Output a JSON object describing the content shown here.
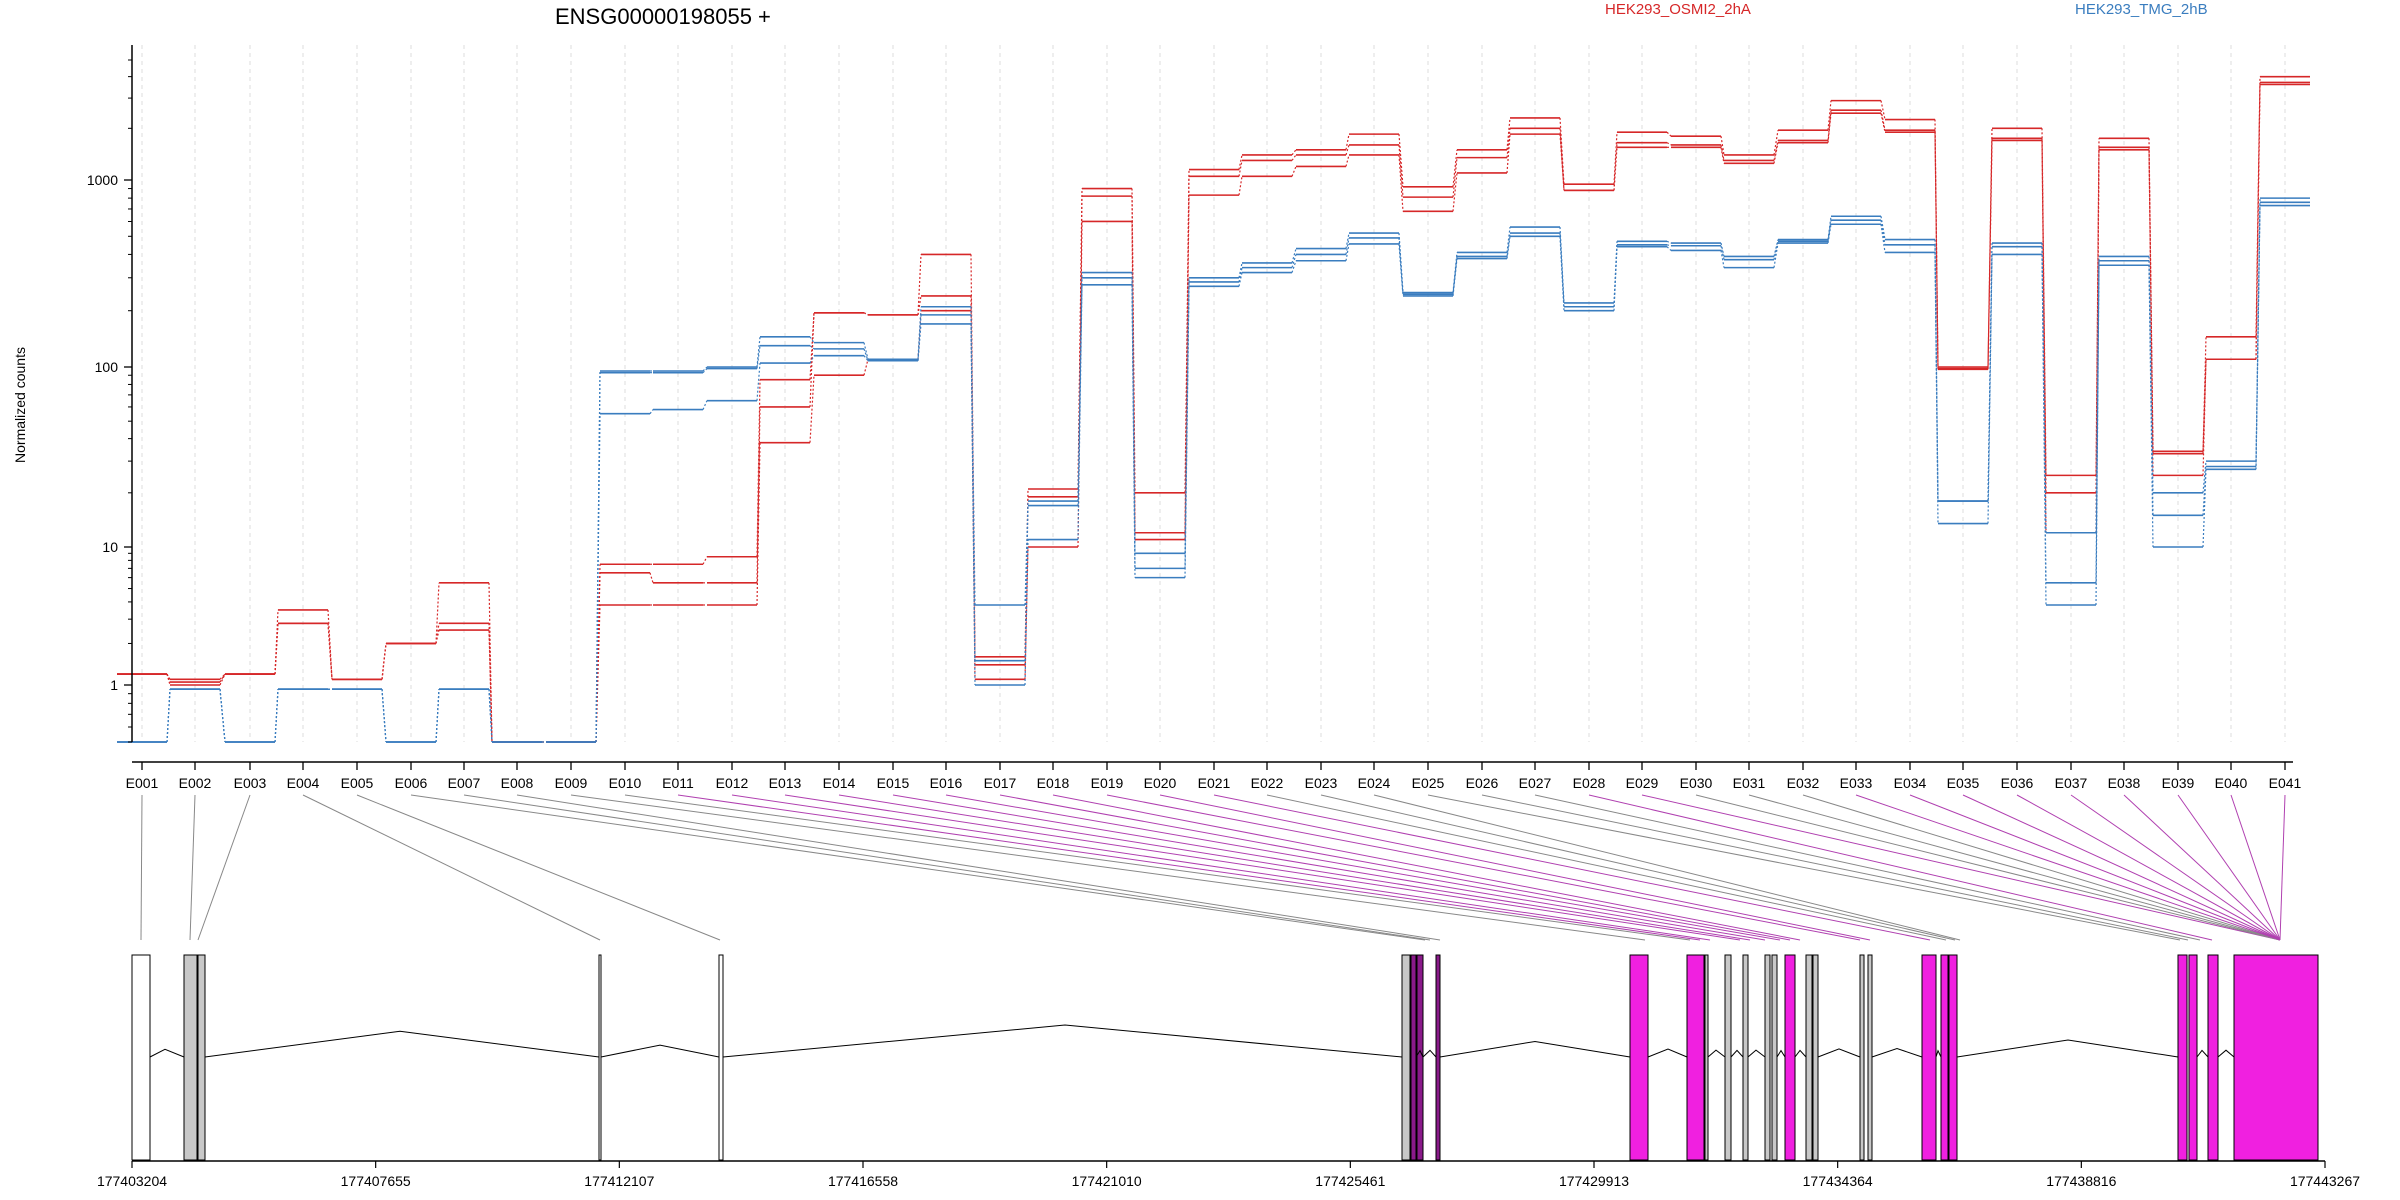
{
  "chart_data": {
    "type": "line",
    "title": "ENSG00000198055 +",
    "xlabel": "",
    "ylabel": "Normalized counts",
    "yscale": "log",
    "ylim": [
      0.5,
      5000
    ],
    "yticks": [
      "1",
      "10",
      "100",
      "1000"
    ],
    "legend": {
      "placement": "top",
      "entries": [
        "HEK293_OSMI2_2hA",
        "HEK293_TMG_2hB"
      ]
    },
    "colors": {
      "HEK293_OSMI2_2hA": "#d62728",
      "HEK293_TMG_2hB": "#3a7dbf"
    },
    "grid": "vertical-dashed",
    "categories": [
      "E001",
      "E002",
      "E003",
      "E004",
      "E005",
      "E006",
      "E007",
      "E008",
      "E009",
      "E010",
      "E011",
      "E012",
      "E013",
      "E014",
      "E015",
      "E016",
      "E017",
      "E018",
      "E019",
      "E020",
      "E021",
      "E022",
      "E023",
      "E024",
      "E025",
      "E026",
      "E027",
      "E028",
      "E029",
      "E030",
      "E031",
      "E032",
      "E033",
      "E034",
      "E035",
      "E036",
      "E037",
      "E038",
      "E039",
      "E040",
      "E041"
    ],
    "series": [
      {
        "group": "HEK293_OSMI2_2hA",
        "values": [
          1.2,
          1.1,
          1.2,
          3.5,
          1.1,
          2.0,
          5.5,
          0.5,
          0.5,
          7.5,
          7.5,
          8.5,
          85,
          195,
          190,
          400,
          1.6,
          21,
          900,
          20,
          1150,
          1400,
          1500,
          1850,
          920,
          1500,
          2300,
          950,
          1900,
          1800,
          1400,
          1950,
          2900,
          2250,
          100,
          2000,
          25,
          1750,
          34,
          145,
          4000
        ]
      },
      {
        "group": "HEK293_OSMI2_2hA",
        "values": [
          1.2,
          1.05,
          1.2,
          2.8,
          1.1,
          2.0,
          2.8,
          0.5,
          0.5,
          6.5,
          5.5,
          5.5,
          60,
          195,
          190,
          240,
          1.4,
          19,
          820,
          12,
          1050,
          1300,
          1400,
          1600,
          810,
          1350,
          2000,
          880,
          1650,
          1600,
          1300,
          1700,
          2550,
          1950,
          98,
          1750,
          20,
          1550,
          33,
          110,
          3700
        ]
      },
      {
        "group": "HEK293_OSMI2_2hA",
        "values": [
          1.2,
          1.0,
          1.2,
          2.8,
          1.1,
          2.0,
          2.5,
          0.5,
          0.5,
          3.8,
          3.8,
          3.8,
          38,
          90,
          110,
          200,
          1.1,
          10,
          600,
          11,
          830,
          1050,
          1200,
          1400,
          680,
          1100,
          1850,
          880,
          1550,
          1550,
          1250,
          1650,
          2450,
          1900,
          97,
          1700,
          12,
          1500,
          25,
          110,
          3600
        ]
      },
      {
        "group": "HEK293_TMG_2hB",
        "values": [
          0.5,
          0.95,
          0.5,
          0.95,
          0.95,
          0.5,
          0.95,
          0.5,
          0.5,
          95,
          95,
          100,
          145,
          135,
          110,
          210,
          3.8,
          18,
          320,
          9,
          300,
          360,
          430,
          520,
          250,
          410,
          560,
          220,
          470,
          460,
          390,
          480,
          640,
          480,
          18,
          460,
          12,
          390,
          20,
          30,
          800
        ]
      },
      {
        "group": "HEK293_TMG_2hB",
        "values": [
          0.5,
          0.95,
          0.5,
          0.95,
          0.95,
          0.5,
          0.95,
          0.5,
          0.5,
          93,
          93,
          98,
          130,
          125,
          108,
          190,
          1.5,
          17,
          300,
          7,
          285,
          340,
          400,
          490,
          245,
          390,
          520,
          210,
          450,
          445,
          375,
          470,
          610,
          450,
          18,
          440,
          5.5,
          370,
          15,
          28,
          760
        ]
      },
      {
        "group": "HEK293_TMG_2hB",
        "values": [
          0.5,
          0.95,
          0.5,
          0.95,
          0.95,
          0.5,
          0.95,
          0.5,
          0.5,
          55,
          58,
          65,
          105,
          115,
          108,
          170,
          1.0,
          11,
          275,
          6,
          270,
          320,
          370,
          455,
          240,
          380,
          500,
          200,
          440,
          420,
          340,
          460,
          580,
          410,
          13.5,
          400,
          3.8,
          350,
          10,
          27,
          730
        ]
      }
    ],
    "genomic_axis": {
      "range": [
        177403204,
        177443267
      ],
      "tick_labels": [
        "177403204",
        "177407655",
        "177412107",
        "177416558",
        "177421010",
        "177425461",
        "177429913",
        "177434364",
        "177438816",
        "177443267"
      ]
    },
    "exon_mapping": {
      "exon_x_centers": [
        142,
        195,
        250,
        303,
        357,
        411,
        464,
        517,
        571,
        625,
        678,
        732,
        785,
        839,
        893,
        946,
        1000,
        1053,
        1107,
        1160,
        1214,
        1267,
        1321,
        1374,
        1428,
        1482,
        1535,
        1589,
        1642,
        1696,
        1749,
        1803,
        1856,
        1910,
        1963,
        2017,
        2071,
        2124,
        2178,
        2231,
        2285
      ],
      "exon_model_x": [
        141,
        190,
        198,
        600,
        720,
        1425,
        1430,
        1440,
        1645,
        1690,
        1700,
        1710,
        1740,
        1750,
        1765,
        1780,
        1790,
        1800,
        1860,
        1870,
        1930,
        1946,
        1955,
        1960,
        2180,
        2188,
        2200,
        2212,
        2280
      ],
      "highlighted_exons": [
        "E011",
        "E012",
        "E013",
        "E014",
        "E015",
        "E016",
        "E017",
        "E018",
        "E019",
        "E020",
        "E021",
        "E028",
        "E029",
        "E033",
        "E034",
        "E035",
        "E036",
        "E037",
        "E038",
        "E039",
        "E040",
        "E041"
      ],
      "exon_boxes": [
        {
          "x0": 132,
          "x1": 150,
          "fill": "#ffffff"
        },
        {
          "x0": 184,
          "x1": 197,
          "fill": "#c8c8c8"
        },
        {
          "x0": 198,
          "x1": 205,
          "fill": "#c8c8c8"
        },
        {
          "x0": 599,
          "x1": 601,
          "fill": "#ffffff"
        },
        {
          "x0": 719,
          "x1": 723,
          "fill": "#ffffff"
        },
        {
          "x0": 1402,
          "x1": 1410,
          "fill": "#c8c8c8"
        },
        {
          "x0": 1411,
          "x1": 1416,
          "fill": "#8a1a8a"
        },
        {
          "x0": 1417,
          "x1": 1423,
          "fill": "#8a1a8a"
        },
        {
          "x0": 1436,
          "x1": 1440,
          "fill": "#8a1a8a"
        },
        {
          "x0": 1630,
          "x1": 1648,
          "fill": "#f020e0"
        },
        {
          "x0": 1687,
          "x1": 1704,
          "fill": "#f020e0"
        },
        {
          "x0": 1705,
          "x1": 1708,
          "fill": "#c8c8c8"
        },
        {
          "x0": 1725,
          "x1": 1731,
          "fill": "#c8c8c8"
        },
        {
          "x0": 1743,
          "x1": 1748,
          "fill": "#c8c8c8"
        },
        {
          "x0": 1765,
          "x1": 1770,
          "fill": "#c8c8c8"
        },
        {
          "x0": 1772,
          "x1": 1777,
          "fill": "#c8c8c8"
        },
        {
          "x0": 1785,
          "x1": 1795,
          "fill": "#f020e0"
        },
        {
          "x0": 1806,
          "x1": 1812,
          "fill": "#c8c8c8"
        },
        {
          "x0": 1813,
          "x1": 1818,
          "fill": "#c8c8c8"
        },
        {
          "x0": 1860,
          "x1": 1864,
          "fill": "#c8c8c8"
        },
        {
          "x0": 1868,
          "x1": 1872,
          "fill": "#c8c8c8"
        },
        {
          "x0": 1922,
          "x1": 1936,
          "fill": "#f020e0"
        },
        {
          "x0": 1941,
          "x1": 1948,
          "fill": "#f020e0"
        },
        {
          "x0": 1949,
          "x1": 1957,
          "fill": "#f020e0"
        },
        {
          "x0": 2178,
          "x1": 2187,
          "fill": "#f020e0"
        },
        {
          "x0": 2189,
          "x1": 2197,
          "fill": "#f020e0"
        },
        {
          "x0": 2208,
          "x1": 2218,
          "fill": "#f020e0"
        },
        {
          "x0": 2234,
          "x1": 2318,
          "fill": "#f020e0"
        }
      ],
      "introns": [
        {
          "x0": 150,
          "x1": 184,
          "mid": 165
        },
        {
          "x0": 205,
          "x1": 599,
          "mid": 400
        },
        {
          "x0": 601,
          "x1": 719,
          "mid": 660
        },
        {
          "x0": 723,
          "x1": 1402,
          "mid": 1065
        },
        {
          "x0": 1416,
          "x1": 1423,
          "mid": 1420
        },
        {
          "x0": 1423,
          "x1": 1436,
          "mid": 1430
        },
        {
          "x0": 1440,
          "x1": 1630,
          "mid": 1535
        },
        {
          "x0": 1648,
          "x1": 1687,
          "mid": 1668
        },
        {
          "x0": 1708,
          "x1": 1725,
          "mid": 1716
        },
        {
          "x0": 1731,
          "x1": 1743,
          "mid": 1737
        },
        {
          "x0": 1748,
          "x1": 1765,
          "mid": 1756
        },
        {
          "x0": 1777,
          "x1": 1785,
          "mid": 1781
        },
        {
          "x0": 1795,
          "x1": 1806,
          "mid": 1800
        },
        {
          "x0": 1818,
          "x1": 1860,
          "mid": 1839
        },
        {
          "x0": 1872,
          "x1": 1922,
          "mid": 1897
        },
        {
          "x0": 1936,
          "x1": 1941,
          "mid": 1938
        },
        {
          "x0": 1957,
          "x1": 2178,
          "mid": 2068
        },
        {
          "x0": 2197,
          "x1": 2208,
          "mid": 2202
        },
        {
          "x0": 2218,
          "x1": 2234,
          "mid": 2226
        }
      ]
    }
  }
}
